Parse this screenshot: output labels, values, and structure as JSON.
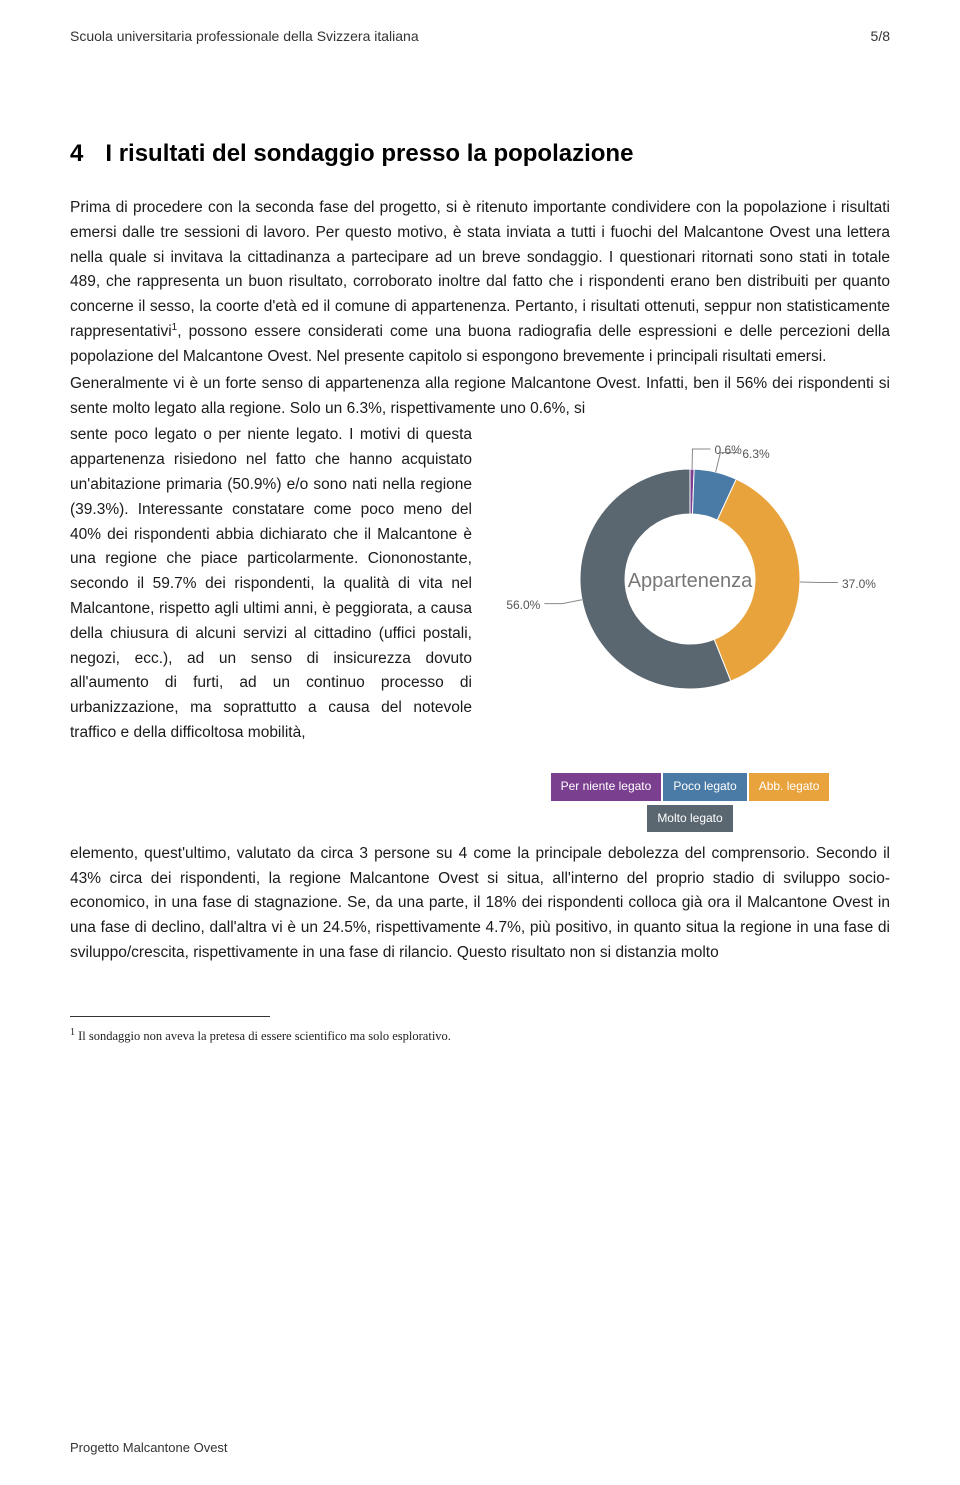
{
  "header": {
    "institution": "Scuola universitaria professionale della Svizzera italiana",
    "page_number": "5/8"
  },
  "section": {
    "number": "4",
    "title": "I risultati del sondaggio presso la popolazione"
  },
  "paragraphs": {
    "p1": "Prima di procedere con la seconda fase del progetto, si è ritenuto importante condividere con la popolazione i risultati emersi dalle tre sessioni di lavoro. Per questo motivo, è stata inviata a tutti i fuochi del Malcantone Ovest una lettera nella quale si invitava la cittadinanza a partecipare ad un breve sondaggio. I questionari ritornati sono stati in totale 489, che rappresenta un buon risultato, corroborato inoltre dal fatto che i rispondenti erano ben distribuiti per quanto concerne il sesso, la coorte d'età ed il comune di appartenenza. Pertanto, i risultati ottenuti, seppur non statisticamente rappresentativi",
    "p1b": ", possono essere considerati come una buona radiografia delle espressioni e delle percezioni della popolazione del Malcantone Ovest. Nel presente capitolo si espongono brevemente i principali risultati emersi.",
    "p2": "Generalmente vi è un forte senso di appartenenza alla regione Malcantone Ovest. Infatti, ben il 56% dei rispondenti si sente molto legato alla regione. Solo un 6.3%, rispettivamente uno 0.6%, si",
    "p3_wrap": "sente poco legato o per niente legato. I motivi di questa appartenenza risiedono nel fatto che hanno acquistato un'abitazione primaria (50.9%) e/o sono nati nella regione (39.3%). Interessante constatare come poco meno del 40% dei rispondenti abbia dichiarato che il Malcantone è una regione che piace particolarmente. Ciononostante, secondo il 59.7% dei rispondenti, la qualità di vita nel Malcantone, rispetto agli ultimi anni, è peggiorata, a causa della chiusura di alcuni servizi al cittadino (uffici postali, negozi, ecc.), ad un senso di insicurezza dovuto all'aumento di furti, ad un continuo processo di urbanizzazione, ma soprattutto a causa del notevole traffico e della difficoltosa mobilità,",
    "p3_after": "elemento, quest'ultimo, valutato da circa 3 persone su 4 come la principale debolezza del comprensorio. Secondo il 43% circa dei rispondenti, la regione Malcantone Ovest si situa, all'interno del proprio stadio di sviluppo socio-economico, in una fase di stagnazione. Se, da una parte, il 18% dei rispondenti colloca già ora il Malcantone Ovest in una fase di declino, dall'altra vi è un 24.5%, rispettivamente 4.7%, più positivo, in quanto situa la regione in una fase di sviluppo/crescita, rispettivamente in una fase di rilancio. Questo risultato non si distanzia molto"
  },
  "chart": {
    "type": "donut",
    "title": "Appartenenza",
    "slices": [
      {
        "label": "Per niente legato",
        "value": 0.6,
        "display": "0.6%",
        "color": "#7b3f8f"
      },
      {
        "label": "Poco legato",
        "value": 6.3,
        "display": "6.3%",
        "color": "#4a7ba6"
      },
      {
        "label": "Abb. legato",
        "value": 37.0,
        "display": "37.0%",
        "color": "#e8a33d"
      },
      {
        "label": "Molto legato",
        "value": 56.0,
        "display": "56.0%",
        "color": "#5a6770"
      }
    ],
    "inner_radius": 65,
    "outer_radius": 110,
    "background_color": "#ffffff",
    "leader_color": "#888888",
    "center_label_color": "#777777",
    "center_label_fontsize": 20,
    "pct_label_fontsize": 12,
    "pct_label_color": "#555555",
    "legend_fontsize": 12,
    "legend_text_color": "#ffffff"
  },
  "footnote": {
    "marker": "1",
    "text": "Il sondaggio non aveva la pretesa di essere scientifico ma solo esplorativo."
  },
  "footer": {
    "project": "Progetto Malcantone Ovest"
  }
}
